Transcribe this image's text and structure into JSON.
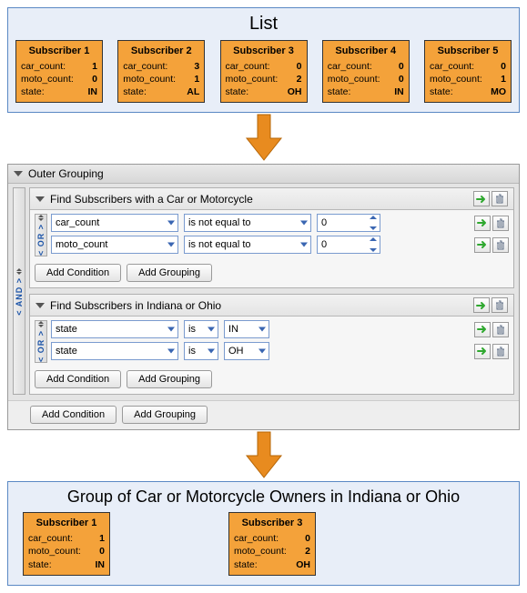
{
  "colors": {
    "panel_bg": "#e8eef8",
    "panel_border": "#5a88c4",
    "card_bg": "#f4a23a",
    "card_border": "#333333",
    "arrow_fill": "#e88b1f",
    "arrow_stroke": "#b56506",
    "builder_bg": "#e4e4e4",
    "select_border": "#7a9bcf",
    "go_arrow": "#2fa82f",
    "trash": "#5b6b83"
  },
  "list_panel": {
    "title": "List",
    "subscribers": [
      {
        "title": "Subscriber 1",
        "car_count": "1",
        "moto_count": "0",
        "state": "IN"
      },
      {
        "title": "Subscriber 2",
        "car_count": "3",
        "moto_count": "1",
        "state": "AL"
      },
      {
        "title": "Subscriber 3",
        "car_count": "0",
        "moto_count": "2",
        "state": "OH"
      },
      {
        "title": "Subscriber 4",
        "car_count": "0",
        "moto_count": "0",
        "state": "IN"
      },
      {
        "title": "Subscriber 5",
        "car_count": "0",
        "moto_count": "1",
        "state": "MO"
      }
    ],
    "field_labels": {
      "car": "car_count:",
      "moto": "moto_count:",
      "state": "state:"
    }
  },
  "builder": {
    "outer_label": "Outer Grouping",
    "outer_operator": "< AND >",
    "groups": [
      {
        "title": "Find Subscribers with a Car or Motorcycle",
        "operator": "< OR >",
        "rows": [
          {
            "field": "car_count",
            "op": "is not equal to",
            "value": "0",
            "value_type": "number"
          },
          {
            "field": "moto_count",
            "op": "is not equal to",
            "value": "0",
            "value_type": "number"
          }
        ]
      },
      {
        "title": "Find Subscribers in Indiana or Ohio",
        "operator": "< OR >",
        "rows": [
          {
            "field": "state",
            "op": "is",
            "value": "IN",
            "value_type": "select"
          },
          {
            "field": "state",
            "op": "is",
            "value": "OH",
            "value_type": "select"
          }
        ]
      }
    ],
    "add_condition": "Add Condition",
    "add_grouping": "Add Grouping"
  },
  "result_panel": {
    "title": "Group of Car or Motorcycle Owners in Indiana or Ohio",
    "subscribers": [
      {
        "title": "Subscriber 1",
        "car_count": "1",
        "moto_count": "0",
        "state": "IN"
      },
      {
        "title": "Subscriber 3",
        "car_count": "0",
        "moto_count": "2",
        "state": "OH"
      }
    ]
  }
}
